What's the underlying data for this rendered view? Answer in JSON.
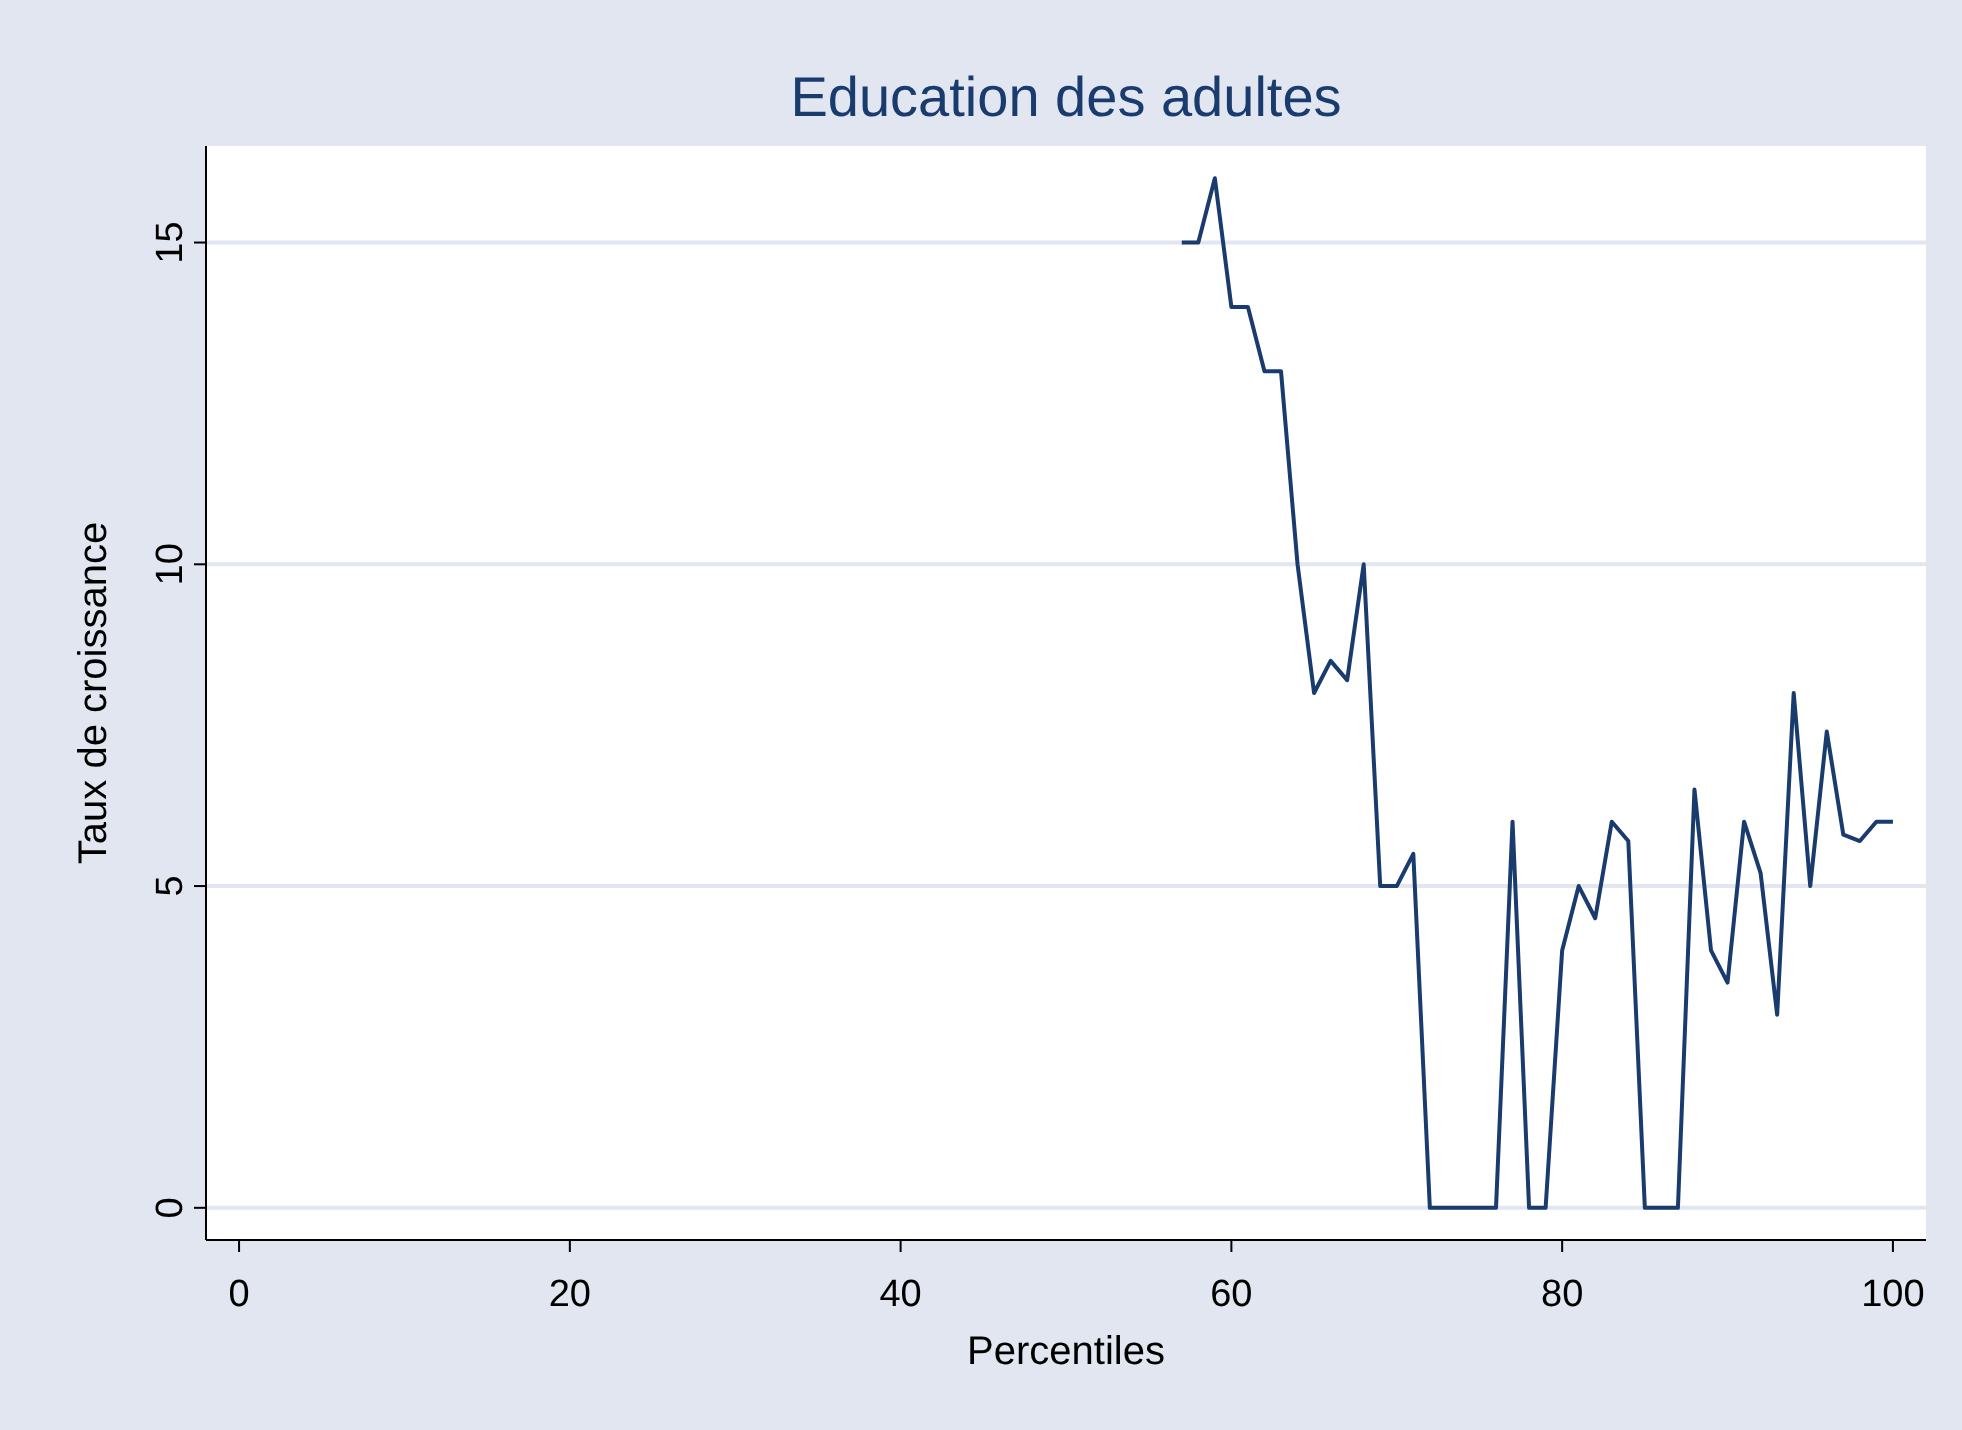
{
  "chart_data": {
    "type": "line",
    "title": "Education des adultes",
    "xlabel": "Percentiles",
    "ylabel": "Taux de croissance",
    "xlim": [
      -2,
      102
    ],
    "ylim": [
      -0.5,
      16.5
    ],
    "xticks": [
      0,
      20,
      40,
      60,
      80,
      100
    ],
    "yticks": [
      0,
      5,
      10,
      15
    ],
    "grid": "y",
    "marker": "none",
    "line_style": "solid",
    "x": [
      57,
      58,
      59,
      60,
      61,
      62,
      63,
      64,
      65,
      66,
      67,
      68,
      69,
      70,
      71,
      72,
      73,
      74,
      75,
      76,
      77,
      78,
      79,
      80,
      81,
      82,
      83,
      84,
      85,
      86,
      87,
      88,
      89,
      90,
      91,
      92,
      93,
      94,
      95,
      96,
      97,
      98,
      99,
      100
    ],
    "series": [
      {
        "color": "#1a3b6e",
        "values": [
          15,
          15,
          16,
          14,
          14,
          13,
          13,
          10,
          8,
          8.5,
          8.2,
          10,
          5,
          5,
          5.5,
          0,
          0,
          0,
          0,
          0,
          6,
          0,
          0,
          4,
          5,
          4.5,
          6,
          5.7,
          0,
          0,
          0,
          6.5,
          4,
          3.5,
          6,
          5.2,
          3,
          8,
          5,
          7.4,
          5.8,
          5.7,
          6,
          6
        ]
      }
    ]
  }
}
